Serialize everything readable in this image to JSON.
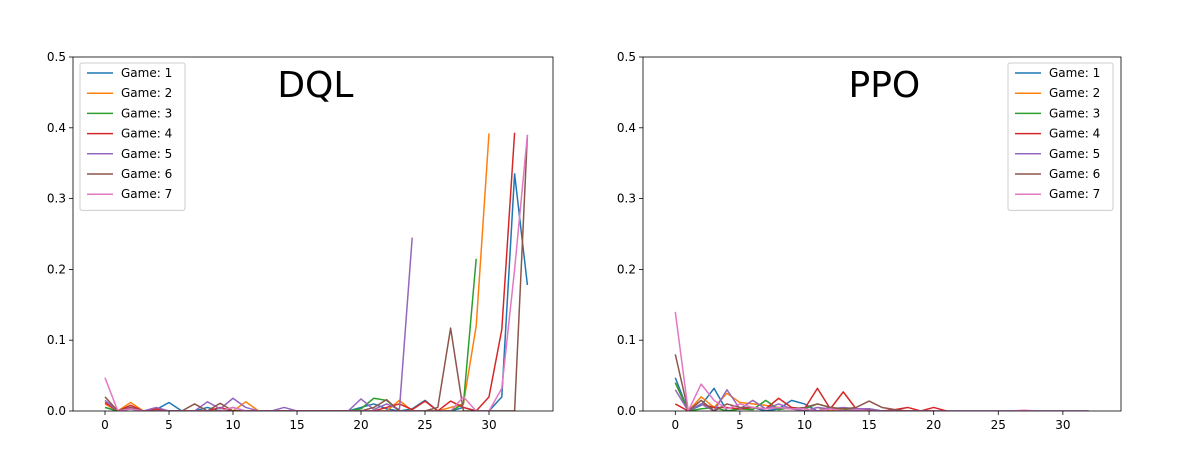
{
  "colors": [
    "#1f77b4",
    "#ff7f0e",
    "#2ca02c",
    "#d62728",
    "#9467bd",
    "#8c564b",
    "#e377c2"
  ],
  "chart_data": [
    {
      "type": "line",
      "title": "DQL",
      "xlabel": "",
      "ylabel": "",
      "xlim": [
        -2.5,
        35
      ],
      "ylim": [
        0,
        0.5
      ],
      "xticks": [
        0,
        5,
        10,
        15,
        20,
        25,
        30
      ],
      "yticks": [
        0.0,
        0.1,
        0.2,
        0.3,
        0.4,
        0.5
      ],
      "legend_position": "top-left",
      "series": [
        {
          "name": "Game: 1",
          "x": [
            0,
            1,
            2,
            3,
            4,
            5,
            6,
            7,
            8,
            9,
            10,
            11,
            12,
            13,
            14,
            15,
            16,
            17,
            18,
            19,
            20,
            21,
            22,
            23,
            24,
            25,
            26,
            27,
            28,
            29,
            30,
            31,
            32,
            33
          ],
          "y": [
            0.005,
            0,
            0.005,
            0,
            0.002,
            0.012,
            0,
            0,
            0.005,
            0,
            0.005,
            0,
            0,
            0,
            0,
            0,
            0,
            0,
            0,
            0,
            0.005,
            0.01,
            0.003,
            0,
            0.003,
            0.015,
            0,
            0,
            0.005,
            0,
            0,
            0.02,
            0.335,
            0.178
          ]
        },
        {
          "name": "Game: 2",
          "x": [
            0,
            1,
            2,
            3,
            4,
            5,
            6,
            7,
            8,
            9,
            10,
            11,
            12,
            13,
            14,
            15,
            16,
            17,
            18,
            19,
            20,
            21,
            22,
            23,
            24,
            25,
            26,
            27,
            28,
            29,
            30
          ],
          "y": [
            0.01,
            0,
            0.012,
            0,
            0.003,
            0,
            0,
            0,
            0,
            0,
            0,
            0.013,
            0,
            0,
            0,
            0,
            0,
            0,
            0,
            0,
            0,
            0,
            0,
            0.015,
            0,
            0,
            0,
            0.005,
            0.01,
            0.12,
            0.392
          ]
        },
        {
          "name": "Game: 3",
          "x": [
            0,
            1,
            2,
            3,
            4,
            5,
            6,
            7,
            8,
            9,
            10,
            11,
            12,
            13,
            14,
            15,
            16,
            17,
            18,
            19,
            20,
            21,
            22,
            23,
            24,
            25,
            26,
            27,
            28,
            29
          ],
          "y": [
            0.005,
            0,
            0.003,
            0,
            0,
            0,
            0,
            0,
            0,
            0,
            0,
            0,
            0,
            0,
            0,
            0,
            0,
            0,
            0,
            0,
            0.003,
            0.018,
            0.015,
            0,
            0,
            0,
            0,
            0,
            0.01,
            0.215
          ]
        },
        {
          "name": "Game: 4",
          "x": [
            0,
            1,
            2,
            3,
            4,
            5,
            6,
            7,
            8,
            9,
            10,
            11,
            12,
            13,
            14,
            15,
            16,
            17,
            18,
            19,
            20,
            21,
            22,
            23,
            24,
            25,
            26,
            27,
            28,
            29,
            30,
            31,
            32
          ],
          "y": [
            0.012,
            0,
            0.008,
            0,
            0.003,
            0,
            0,
            0,
            0,
            0.005,
            0,
            0,
            0,
            0,
            0,
            0,
            0,
            0,
            0,
            0,
            0,
            0,
            0.005,
            0.01,
            0.002,
            0.014,
            0,
            0.014,
            0.005,
            0,
            0.02,
            0.115,
            0.393
          ]
        },
        {
          "name": "Game: 5",
          "x": [
            0,
            1,
            2,
            3,
            4,
            5,
            6,
            7,
            8,
            9,
            10,
            11,
            12,
            13,
            14,
            15,
            16,
            17,
            18,
            19,
            20,
            21,
            22,
            23,
            24
          ],
          "y": [
            0.015,
            0,
            0.003,
            0,
            0.005,
            0,
            0,
            0,
            0.013,
            0.003,
            0.018,
            0.005,
            0,
            0,
            0.005,
            0,
            0,
            0,
            0,
            0,
            0.017,
            0.002,
            0.01,
            0.002,
            0.245
          ]
        },
        {
          "name": "Game: 6",
          "x": [
            0,
            1,
            2,
            3,
            4,
            5,
            6,
            7,
            8,
            9,
            10,
            11,
            12,
            13,
            14,
            15,
            16,
            17,
            18,
            19,
            20,
            21,
            22,
            23,
            24,
            25,
            26,
            27,
            28,
            29,
            30,
            31,
            32,
            33
          ],
          "y": [
            0.02,
            0,
            0.005,
            0,
            0,
            0,
            0,
            0.01,
            0,
            0.011,
            0,
            0,
            0,
            0,
            0,
            0,
            0,
            0,
            0,
            0,
            0,
            0.005,
            0.016,
            0,
            0,
            0,
            0.005,
            0.117,
            0,
            0,
            0,
            0,
            0,
            0.39
          ]
        },
        {
          "name": "Game: 7",
          "x": [
            0,
            1,
            2,
            3,
            4,
            5,
            6,
            7,
            8,
            9,
            10,
            11,
            12,
            13,
            14,
            15,
            16,
            17,
            18,
            19,
            20,
            21,
            22,
            23,
            24,
            25,
            26,
            27,
            28,
            29,
            30,
            31,
            32,
            33
          ],
          "y": [
            0.047,
            0,
            0.003,
            0,
            0,
            0,
            0,
            0,
            0,
            0,
            0.005,
            0,
            0,
            0,
            0,
            0,
            0,
            0,
            0,
            0,
            0,
            0,
            0,
            0,
            0,
            0,
            0,
            0,
            0.02,
            0,
            0,
            0.032,
            0.2,
            0.39
          ]
        }
      ]
    },
    {
      "type": "line",
      "title": "PPO",
      "xlabel": "",
      "ylabel": "",
      "xlim": [
        -2.5,
        34.5
      ],
      "ylim": [
        0,
        0.5
      ],
      "xticks": [
        0,
        5,
        10,
        15,
        20,
        25,
        30
      ],
      "yticks": [
        0.0,
        0.1,
        0.2,
        0.3,
        0.4,
        0.5
      ],
      "legend_position": "top-right",
      "series": [
        {
          "name": "Game: 1",
          "x": [
            0,
            1,
            2,
            3,
            4,
            5,
            6,
            7,
            8,
            9,
            10,
            11,
            12,
            13,
            14,
            15,
            16,
            17,
            18,
            19,
            20,
            21,
            22,
            23,
            24,
            25,
            26,
            27,
            28,
            29,
            30,
            31,
            32
          ],
          "y": [
            0.047,
            0,
            0.008,
            0.032,
            0,
            0.003,
            0.005,
            0,
            0.003,
            0.015,
            0.01,
            0,
            0.005,
            0,
            0.003,
            0.003,
            0,
            0,
            0,
            0,
            0,
            0,
            0,
            0,
            0,
            0,
            0,
            0,
            0,
            0,
            0,
            0,
            0
          ]
        },
        {
          "name": "Game: 2",
          "x": [
            0,
            1,
            2,
            3,
            4,
            5,
            6,
            7,
            8,
            9,
            10,
            11,
            12,
            13,
            14,
            15,
            16,
            17,
            18,
            19,
            20
          ],
          "y": [
            0.04,
            0,
            0.02,
            0.005,
            0.025,
            0.012,
            0.01,
            0.008,
            0.005,
            0.003,
            0,
            0.005,
            0,
            0.003,
            0,
            0.002,
            0,
            0,
            0,
            0,
            0
          ]
        },
        {
          "name": "Game: 3",
          "x": [
            0,
            1,
            2,
            3,
            4,
            5,
            6,
            7,
            8,
            9,
            10,
            11,
            12,
            13,
            14,
            15,
            16,
            17,
            18,
            19,
            20
          ],
          "y": [
            0.04,
            0,
            0.003,
            0.005,
            0,
            0.003,
            0.002,
            0.015,
            0.002,
            0.005,
            0.003,
            0.01,
            0.005,
            0.003,
            0,
            0.003,
            0,
            0,
            0,
            0,
            0
          ]
        },
        {
          "name": "Game: 4",
          "x": [
            0,
            1,
            2,
            3,
            4,
            5,
            6,
            7,
            8,
            9,
            10,
            11,
            12,
            13,
            14,
            15,
            16,
            17,
            18,
            19,
            20,
            21
          ],
          "y": [
            0.01,
            0,
            0.01,
            0.005,
            0.005,
            0.003,
            0.005,
            0.003,
            0.018,
            0.005,
            0.003,
            0.032,
            0.003,
            0.027,
            0.003,
            0.002,
            0,
            0.002,
            0.005,
            0,
            0.005,
            0
          ]
        },
        {
          "name": "Game: 5",
          "x": [
            0,
            1,
            2,
            3,
            4,
            5,
            6,
            7,
            8,
            9,
            10,
            11,
            12,
            13,
            14,
            15,
            16,
            17,
            18,
            19,
            20
          ],
          "y": [
            0.03,
            0,
            0.01,
            0,
            0.03,
            0.003,
            0.015,
            0.003,
            0.01,
            0.003,
            0,
            0.005,
            0.003,
            0.005,
            0.003,
            0.003,
            0,
            0,
            0,
            0,
            0
          ]
        },
        {
          "name": "Game: 6",
          "x": [
            0,
            1,
            2,
            3,
            4,
            5,
            6,
            7,
            8,
            9,
            10,
            11,
            12,
            13,
            14,
            15,
            16,
            17,
            18,
            19,
            20
          ],
          "y": [
            0.08,
            0,
            0.015,
            0,
            0.01,
            0.005,
            0.005,
            0.003,
            0.005,
            0.003,
            0.005,
            0.01,
            0.005,
            0.003,
            0.005,
            0.014,
            0.005,
            0.002,
            0,
            0,
            0
          ]
        },
        {
          "name": "Game: 7",
          "x": [
            0,
            1,
            2,
            3,
            4,
            5,
            6,
            7,
            8,
            9,
            10,
            11,
            12,
            13,
            14,
            15,
            16,
            17,
            18,
            19,
            20,
            21,
            22,
            23,
            24,
            25,
            26,
            27,
            28,
            29,
            30,
            31,
            32
          ],
          "y": [
            0.14,
            0,
            0.038,
            0.015,
            0.003,
            0.01,
            0.005,
            0.003,
            0.005,
            0.003,
            0.003,
            0,
            0.003,
            0,
            0.002,
            0,
            0,
            0,
            0,
            0,
            0,
            0,
            0,
            0,
            0,
            0,
            0,
            0.001,
            0,
            0,
            0,
            0,
            0
          ]
        }
      ]
    }
  ]
}
